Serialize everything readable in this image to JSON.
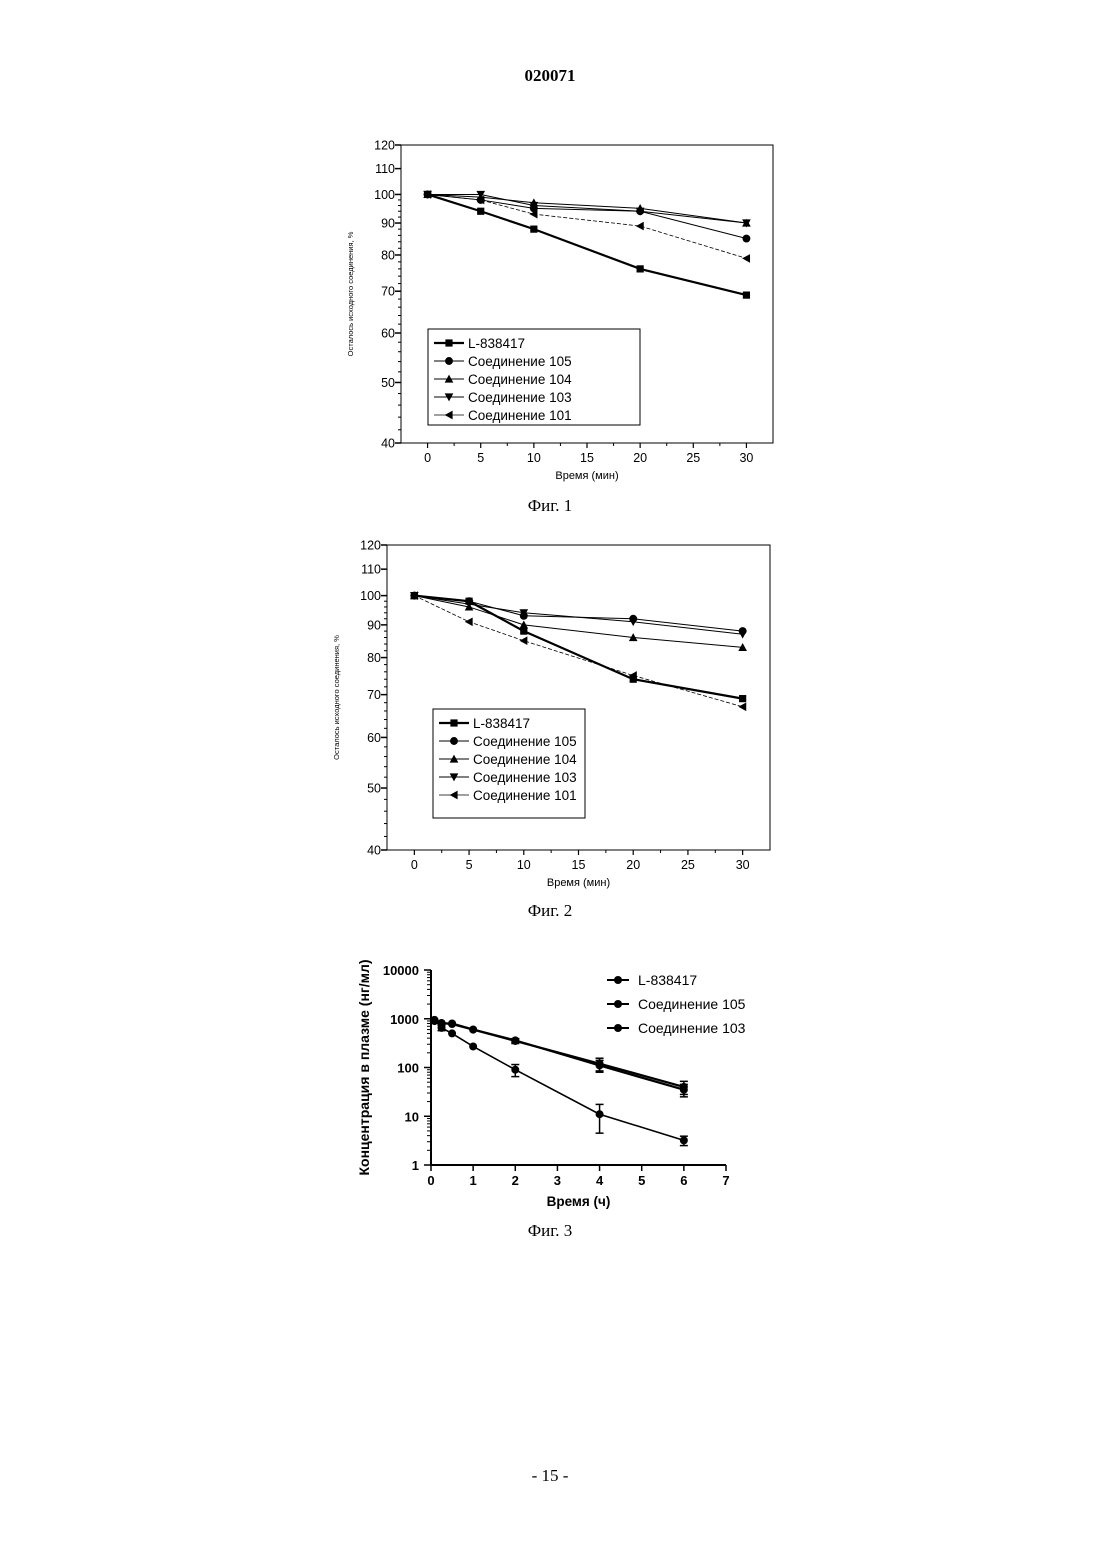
{
  "page": {
    "doc_number": "020071",
    "page_number": "- 15 -"
  },
  "chart_data": [
    {
      "type": "line",
      "caption": "Фиг. 1",
      "xlabel": "Время (мин)",
      "ylabel": "Осталось исходного соединения, %",
      "x": [
        0,
        5,
        10,
        20,
        30
      ],
      "xlim": [
        -2.5,
        32.5
      ],
      "xticks": [
        0,
        5,
        10,
        15,
        20,
        25,
        30
      ],
      "ylim": [
        40,
        120
      ],
      "yscale": "log",
      "yticks": [
        40,
        50,
        60,
        70,
        80,
        90,
        100,
        110,
        120
      ],
      "grid": false,
      "legend_position": "lower-left",
      "series": [
        {
          "name": "L-838417",
          "marker": "square",
          "values": [
            100,
            94,
            88,
            76,
            69
          ]
        },
        {
          "name": "Соединение 105",
          "marker": "circle",
          "values": [
            100,
            98,
            95,
            94,
            85
          ]
        },
        {
          "name": "Соединение 104",
          "marker": "triangle-up",
          "values": [
            100,
            99,
            97,
            95,
            90
          ]
        },
        {
          "name": "Соединение 103",
          "marker": "triangle-down",
          "values": [
            100,
            100,
            96,
            94,
            90
          ]
        },
        {
          "name": "Соединение 101",
          "marker": "triangle-left",
          "values": [
            100,
            98,
            93,
            89,
            79
          ]
        }
      ]
    },
    {
      "type": "line",
      "caption": "Фиг. 2",
      "xlabel": "Время (мин)",
      "ylabel": "Осталось исходного соединения, %",
      "x": [
        0,
        5,
        10,
        20,
        30
      ],
      "xlim": [
        -2.5,
        32.5
      ],
      "xticks": [
        0,
        5,
        10,
        15,
        20,
        25,
        30
      ],
      "ylim": [
        40,
        120
      ],
      "yscale": "log",
      "yticks": [
        40,
        50,
        60,
        70,
        80,
        90,
        100,
        110,
        120
      ],
      "grid": false,
      "legend_position": "lower-left",
      "series": [
        {
          "name": "L-838417",
          "marker": "square",
          "values": [
            100,
            98,
            88,
            74,
            69
          ]
        },
        {
          "name": "Соединение 105",
          "marker": "circle",
          "values": [
            100,
            98,
            93,
            92,
            88
          ]
        },
        {
          "name": "Соединение 104",
          "marker": "triangle-up",
          "values": [
            100,
            96,
            90,
            86,
            83
          ]
        },
        {
          "name": "Соединение 103",
          "marker": "triangle-down",
          "values": [
            100,
            97,
            94,
            91,
            87
          ]
        },
        {
          "name": "Соединение 101",
          "marker": "triangle-left",
          "values": [
            100,
            91,
            85,
            75,
            67
          ]
        }
      ]
    },
    {
      "type": "line",
      "caption": "Фиг. 3",
      "xlabel": "Время (ч)",
      "ylabel": "Концентрация в плазме (нг/мл)",
      "xlim": [
        0,
        7
      ],
      "xticks": [
        0,
        1,
        2,
        3,
        4,
        5,
        6,
        7
      ],
      "ylim": [
        1,
        10000
      ],
      "yscale": "log",
      "yticks": [
        1,
        10,
        100,
        1000,
        10000
      ],
      "ytick_labels": [
        "1",
        "10",
        "100",
        "1000",
        "10000"
      ],
      "grid": false,
      "legend_position": "top-right",
      "series": [
        {
          "name": "L-838417",
          "x": [
            0.083,
            0.25,
            0.5,
            1,
            2,
            4,
            6
          ],
          "values": [
            900,
            800,
            800,
            600,
            350,
            120,
            40
          ],
          "error": [
            0,
            0,
            0,
            0,
            40,
            35,
            12
          ]
        },
        {
          "name": "Соединение 105",
          "x": [
            0.083,
            0.25,
            0.5,
            1,
            2,
            4,
            6
          ],
          "values": [
            950,
            650,
            500,
            270,
            90,
            11,
            3.2
          ],
          "error": [
            0,
            80,
            0,
            0,
            25,
            6.5,
            0.7
          ]
        },
        {
          "name": "Соединение 103",
          "x": [
            0.083,
            0.25,
            0.5,
            1,
            2,
            4,
            6
          ],
          "values": [
            900,
            820,
            780,
            600,
            360,
            110,
            35
          ],
          "error": [
            0,
            0,
            0,
            0,
            30,
            30,
            10
          ]
        }
      ]
    }
  ]
}
